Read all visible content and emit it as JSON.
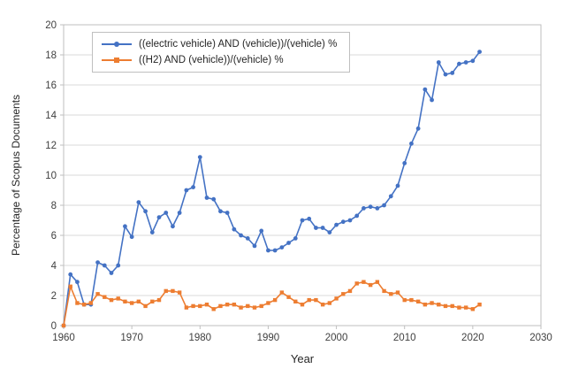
{
  "chart_data": {
    "type": "line",
    "title": "",
    "xlabel": "Year",
    "ylabel": "Percentage of Scopus Documents",
    "xlim": [
      1960,
      2030
    ],
    "ylim": [
      0,
      20
    ],
    "x_ticks": [
      1960,
      1970,
      1980,
      1990,
      2000,
      2010,
      2020,
      2030
    ],
    "y_ticks": [
      0,
      2,
      4,
      6,
      8,
      10,
      12,
      14,
      16,
      18,
      20
    ],
    "grid": "horizontal",
    "legend_position": "top-left-inside",
    "colors": {
      "grid": "#d9d9d9",
      "border": "#bfbfbf",
      "tick": "#bfbfbf",
      "tick_label": "#404040"
    },
    "x": [
      1960,
      1961,
      1962,
      1963,
      1964,
      1965,
      1966,
      1967,
      1968,
      1969,
      1970,
      1971,
      1972,
      1973,
      1974,
      1975,
      1976,
      1977,
      1978,
      1979,
      1980,
      1981,
      1982,
      1983,
      1984,
      1985,
      1986,
      1987,
      1988,
      1989,
      1990,
      1991,
      1992,
      1993,
      1994,
      1995,
      1996,
      1997,
      1998,
      1999,
      2000,
      2001,
      2002,
      2003,
      2004,
      2005,
      2006,
      2007,
      2008,
      2009,
      2010,
      2011,
      2012,
      2013,
      2014,
      2015,
      2016,
      2017,
      2018,
      2019,
      2020,
      2021
    ],
    "series": [
      {
        "name": "((electric vehicle) AND (vehicle))/(vehicle) %",
        "color": "#4472C4",
        "marker": "circle",
        "values": [
          0,
          3.4,
          2.9,
          1.4,
          1.4,
          4.2,
          4.0,
          3.5,
          4.0,
          6.6,
          5.9,
          8.2,
          7.6,
          6.2,
          7.2,
          7.5,
          6.6,
          7.5,
          9.0,
          9.2,
          11.2,
          8.5,
          8.4,
          7.6,
          7.5,
          6.4,
          6.0,
          5.8,
          5.3,
          6.3,
          5.0,
          5.0,
          5.2,
          5.5,
          5.8,
          7.0,
          7.1,
          6.5,
          6.5,
          6.2,
          6.7,
          6.9,
          7.0,
          7.3,
          7.8,
          7.9,
          7.8,
          8.0,
          8.6,
          9.3,
          10.8,
          12.1,
          13.1,
          15.7,
          15.0,
          17.5,
          16.7,
          16.8,
          17.4,
          17.5,
          17.6,
          18.2
        ]
      },
      {
        "name": "((H2) AND (vehicle))/(vehicle) %",
        "color": "#ED7D31",
        "marker": "square",
        "values": [
          0,
          2.6,
          1.5,
          1.4,
          1.5,
          2.1,
          1.9,
          1.7,
          1.8,
          1.6,
          1.5,
          1.6,
          1.3,
          1.6,
          1.7,
          2.3,
          2.3,
          2.2,
          1.2,
          1.3,
          1.3,
          1.4,
          1.1,
          1.3,
          1.4,
          1.4,
          1.2,
          1.3,
          1.2,
          1.3,
          1.5,
          1.7,
          2.2,
          1.9,
          1.6,
          1.4,
          1.7,
          1.7,
          1.4,
          1.5,
          1.8,
          2.1,
          2.3,
          2.8,
          2.9,
          2.7,
          2.9,
          2.3,
          2.1,
          2.2,
          1.7,
          1.7,
          1.6,
          1.4,
          1.5,
          1.4,
          1.3,
          1.3,
          1.2,
          1.2,
          1.1,
          1.4
        ]
      }
    ]
  }
}
